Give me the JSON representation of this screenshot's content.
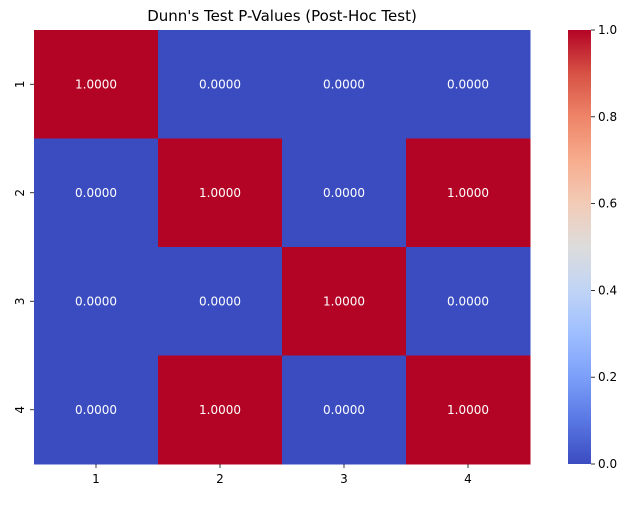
{
  "chart_data": {
    "type": "heatmap",
    "title": "Dunn's Test P-Values (Post-Hoc Test)",
    "xlabel": "",
    "ylabel": "",
    "x_categories": [
      "1",
      "2",
      "3",
      "4"
    ],
    "y_categories": [
      "1",
      "2",
      "3",
      "4"
    ],
    "values": [
      [
        1.0,
        0.0,
        0.0,
        0.0
      ],
      [
        0.0,
        1.0,
        0.0,
        1.0
      ],
      [
        0.0,
        0.0,
        1.0,
        0.0
      ],
      [
        0.0,
        1.0,
        0.0,
        1.0
      ]
    ],
    "value_labels": [
      [
        "1.0000",
        "0.0000",
        "0.0000",
        "0.0000"
      ],
      [
        "0.0000",
        "1.0000",
        "0.0000",
        "1.0000"
      ],
      [
        "0.0000",
        "0.0000",
        "1.0000",
        "0.0000"
      ],
      [
        "0.0000",
        "1.0000",
        "0.0000",
        "1.0000"
      ]
    ],
    "colormap": "coolwarm",
    "colors": {
      "low": "#3b4cc0",
      "high": "#b40426"
    },
    "colorbar": {
      "range": [
        0.0,
        1.0
      ],
      "ticks": [
        "0.0",
        "0.2",
        "0.4",
        "0.6",
        "0.8",
        "1.0"
      ]
    }
  }
}
